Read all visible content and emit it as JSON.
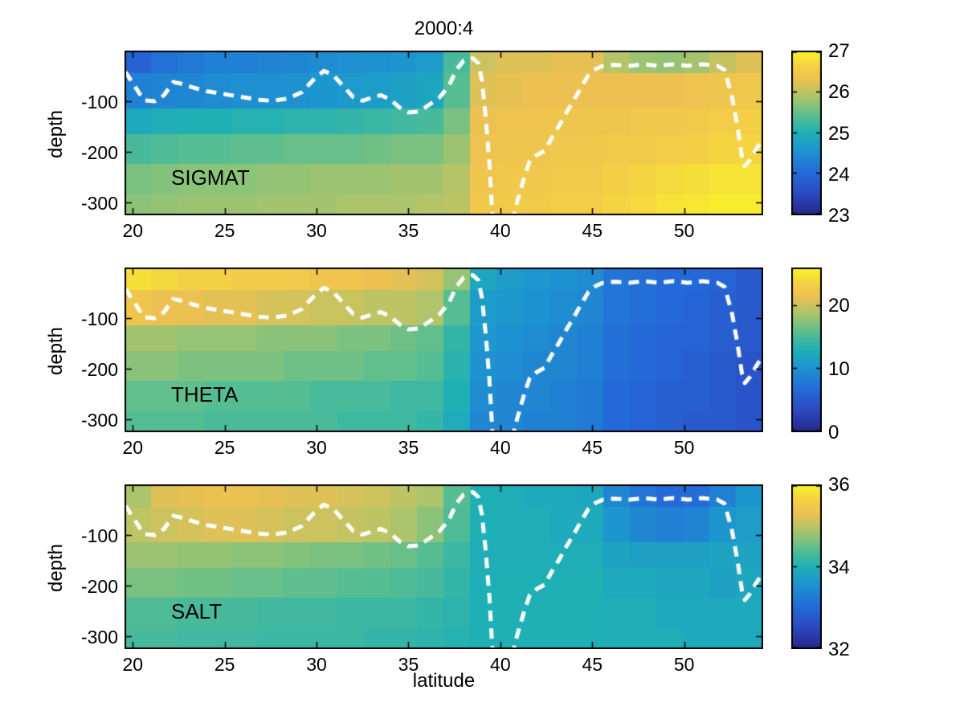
{
  "title": "2000:4",
  "chart_data": {
    "type": "heatmap",
    "title": "2000:4",
    "xlabel": "latitude",
    "ylabel": "depth",
    "lat_range": [
      19.55,
      54.3
    ],
    "x_ticks": [
      20,
      25,
      30,
      35,
      40,
      45,
      50
    ],
    "depth_range": [
      0,
      -325
    ],
    "y_ticks": [
      -100,
      -200,
      -300
    ],
    "row_boundaries": [
      0,
      -45,
      -115,
      -165,
      -225,
      -285,
      -325
    ],
    "grid": "off",
    "legend": "colorbars-right",
    "colormap": [
      [
        0.0,
        "#232888"
      ],
      [
        0.13,
        "#2c49c0"
      ],
      [
        0.25,
        "#2469d8"
      ],
      [
        0.4,
        "#1d96cf"
      ],
      [
        0.5,
        "#1fb0b5"
      ],
      [
        0.6,
        "#56bd92"
      ],
      [
        0.68,
        "#8fc377"
      ],
      [
        0.75,
        "#bcc464"
      ],
      [
        0.82,
        "#ecc052"
      ],
      [
        0.9,
        "#f4cf45"
      ],
      [
        1.0,
        "#f9f626"
      ]
    ],
    "mld_line": {
      "color": "#ffffff",
      "style": "dashed",
      "width": 5,
      "points": [
        [
          19.6,
          -42
        ],
        [
          20.1,
          -70
        ],
        [
          20.6,
          -98
        ],
        [
          21.2,
          -100
        ],
        [
          21.7,
          -88
        ],
        [
          22.2,
          -62
        ],
        [
          22.6,
          -65
        ],
        [
          23.2,
          -72
        ],
        [
          24.0,
          -80
        ],
        [
          25.0,
          -86
        ],
        [
          26.0,
          -92
        ],
        [
          26.8,
          -97
        ],
        [
          27.6,
          -99
        ],
        [
          28.4,
          -95
        ],
        [
          29.2,
          -82
        ],
        [
          29.9,
          -55
        ],
        [
          30.4,
          -40
        ],
        [
          30.9,
          -48
        ],
        [
          31.5,
          -72
        ],
        [
          32.0,
          -92
        ],
        [
          32.5,
          -99
        ],
        [
          33.0,
          -93
        ],
        [
          33.5,
          -88
        ],
        [
          34.0,
          -96
        ],
        [
          34.5,
          -112
        ],
        [
          35.0,
          -122
        ],
        [
          35.6,
          -120
        ],
        [
          36.2,
          -105
        ],
        [
          36.7,
          -92
        ],
        [
          37.2,
          -70
        ],
        [
          37.6,
          -38
        ],
        [
          38.0,
          -20
        ],
        [
          38.5,
          -15
        ],
        [
          38.8,
          -25
        ],
        [
          39.0,
          -60
        ],
        [
          39.2,
          -130
        ],
        [
          39.4,
          -220
        ],
        [
          39.6,
          -345
        ],
        [
          40.6,
          -345
        ],
        [
          40.9,
          -300
        ],
        [
          41.3,
          -250
        ],
        [
          41.6,
          -218
        ],
        [
          42.0,
          -206
        ],
        [
          42.4,
          -198
        ],
        [
          42.8,
          -172
        ],
        [
          43.2,
          -148
        ],
        [
          43.6,
          -122
        ],
        [
          44.0,
          -98
        ],
        [
          44.4,
          -72
        ],
        [
          44.8,
          -48
        ],
        [
          45.2,
          -36
        ],
        [
          45.6,
          -30
        ],
        [
          46.2,
          -28
        ],
        [
          47.0,
          -30
        ],
        [
          47.8,
          -27
        ],
        [
          48.6,
          -30
        ],
        [
          49.4,
          -27
        ],
        [
          50.2,
          -30
        ],
        [
          51.0,
          -27
        ],
        [
          51.8,
          -30
        ],
        [
          52.2,
          -38
        ],
        [
          52.6,
          -90
        ],
        [
          52.9,
          -150
        ],
        [
          53.15,
          -210
        ],
        [
          53.3,
          -228
        ],
        [
          53.6,
          -215
        ],
        [
          54.0,
          -190
        ],
        [
          54.3,
          -175
        ]
      ]
    },
    "panels": [
      {
        "name": "SIGMAT",
        "colorbar": {
          "range": [
            23,
            27
          ],
          "ticks": [
            23,
            24,
            25,
            26,
            27
          ]
        },
        "values": [
          [
            23.9,
            24.1,
            24.2,
            24.3,
            24.3,
            24.35,
            24.4,
            24.45,
            24.5,
            24.55,
            24.6,
            24.7,
            25.3,
            26.1,
            26.2,
            26.2,
            26.25,
            26.25,
            25.95,
            25.8,
            25.75,
            25.85,
            26.05,
            26.2
          ],
          [
            24.3,
            24.35,
            24.4,
            24.45,
            24.5,
            24.5,
            24.55,
            24.6,
            24.65,
            24.7,
            24.75,
            24.85,
            25.4,
            26.2,
            26.25,
            26.3,
            26.3,
            26.3,
            26.3,
            26.3,
            26.3,
            26.35,
            26.4,
            26.45
          ],
          [
            24.9,
            24.95,
            25.0,
            25.0,
            25.05,
            25.05,
            25.1,
            25.1,
            25.15,
            25.2,
            25.25,
            25.3,
            25.6,
            26.3,
            26.35,
            26.35,
            26.4,
            26.4,
            26.4,
            26.45,
            26.45,
            26.5,
            26.55,
            26.6
          ],
          [
            25.3,
            25.35,
            25.4,
            25.4,
            25.45,
            25.45,
            25.5,
            25.5,
            25.5,
            25.55,
            25.6,
            25.6,
            25.8,
            26.35,
            26.4,
            26.4,
            26.45,
            26.45,
            26.5,
            26.5,
            26.55,
            26.6,
            26.65,
            26.65
          ],
          [
            25.6,
            25.65,
            25.7,
            25.7,
            25.7,
            25.75,
            25.75,
            25.8,
            25.8,
            25.8,
            25.85,
            25.85,
            25.95,
            26.4,
            26.45,
            26.45,
            26.5,
            26.5,
            26.6,
            26.65,
            26.7,
            26.75,
            26.8,
            26.8
          ],
          [
            25.7,
            25.75,
            25.8,
            25.8,
            25.8,
            25.85,
            25.85,
            25.85,
            25.9,
            25.9,
            25.9,
            25.95,
            26.0,
            26.45,
            26.5,
            26.5,
            26.55,
            26.55,
            26.65,
            26.7,
            26.8,
            26.85,
            26.9,
            26.9
          ]
        ]
      },
      {
        "name": "THETA",
        "colorbar": {
          "range": [
            0,
            26
          ],
          "ticks": [
            0,
            10,
            20
          ]
        },
        "values": [
          [
            24.5,
            24.0,
            23.5,
            23.5,
            23.0,
            23.0,
            22.5,
            22.0,
            22.0,
            21.5,
            21.0,
            20.5,
            18.0,
            12.0,
            11.0,
            10.5,
            10.0,
            9.5,
            7.5,
            7.0,
            6.5,
            6.5,
            6.0,
            5.0
          ],
          [
            22.0,
            21.5,
            21.5,
            21.0,
            21.0,
            20.5,
            20.5,
            20.0,
            20.0,
            19.5,
            19.5,
            19.0,
            15.5,
            11.0,
            10.5,
            10.0,
            9.5,
            9.0,
            7.5,
            7.0,
            6.5,
            6.0,
            5.5,
            5.0
          ],
          [
            18.5,
            18.5,
            18.0,
            18.0,
            18.0,
            17.5,
            17.5,
            17.5,
            17.0,
            17.0,
            16.5,
            16.0,
            14.0,
            10.5,
            10.0,
            9.5,
            9.0,
            8.5,
            7.0,
            6.5,
            6.0,
            6.0,
            5.5,
            5.0
          ],
          [
            17.5,
            17.5,
            17.0,
            17.0,
            17.0,
            17.0,
            16.5,
            16.5,
            16.5,
            16.0,
            16.0,
            15.5,
            13.5,
            10.0,
            9.5,
            9.0,
            9.0,
            8.5,
            7.0,
            6.5,
            6.0,
            5.5,
            5.0,
            4.5
          ],
          [
            16.0,
            16.0,
            16.0,
            15.5,
            15.5,
            15.5,
            15.5,
            15.0,
            15.0,
            15.0,
            14.5,
            14.5,
            13.0,
            9.5,
            9.0,
            9.0,
            8.5,
            8.0,
            6.5,
            6.0,
            5.5,
            5.5,
            5.0,
            4.5
          ],
          [
            15.5,
            15.5,
            15.5,
            15.0,
            15.0,
            15.0,
            15.0,
            15.0,
            14.5,
            14.5,
            14.5,
            14.0,
            12.5,
            9.0,
            9.0,
            8.5,
            8.5,
            8.0,
            6.5,
            6.0,
            5.5,
            5.0,
            5.0,
            4.5
          ]
        ]
      },
      {
        "name": "SALT",
        "colorbar": {
          "range": [
            32,
            36
          ],
          "ticks": [
            32,
            34,
            36
          ]
        },
        "values": [
          [
            34.9,
            35.2,
            35.25,
            35.3,
            35.3,
            35.25,
            35.2,
            35.2,
            35.15,
            35.1,
            35.0,
            34.9,
            34.4,
            34.0,
            33.95,
            33.9,
            33.9,
            33.85,
            33.4,
            33.15,
            33.0,
            33.05,
            33.3,
            33.6
          ],
          [
            35.0,
            35.1,
            35.15,
            35.2,
            35.2,
            35.15,
            35.1,
            35.1,
            35.05,
            35.0,
            34.9,
            34.7,
            34.35,
            34.0,
            33.95,
            33.95,
            33.9,
            33.9,
            33.6,
            33.4,
            33.3,
            33.35,
            33.6,
            33.7
          ],
          [
            34.8,
            34.8,
            34.75,
            34.75,
            34.7,
            34.7,
            34.65,
            34.6,
            34.6,
            34.55,
            34.5,
            34.4,
            34.2,
            33.95,
            33.95,
            33.95,
            33.95,
            33.95,
            33.8,
            33.75,
            33.75,
            33.75,
            33.8,
            33.8
          ],
          [
            34.6,
            34.6,
            34.55,
            34.55,
            34.5,
            34.5,
            34.45,
            34.45,
            34.4,
            34.4,
            34.35,
            34.3,
            34.15,
            33.95,
            34.0,
            34.0,
            34.0,
            34.0,
            33.9,
            33.9,
            33.85,
            33.85,
            33.75,
            33.85
          ],
          [
            34.35,
            34.35,
            34.3,
            34.3,
            34.3,
            34.25,
            34.25,
            34.25,
            34.2,
            34.2,
            34.2,
            34.15,
            34.1,
            34.0,
            34.0,
            34.0,
            34.0,
            34.0,
            33.95,
            33.95,
            33.9,
            33.9,
            33.9,
            33.9
          ],
          [
            34.3,
            34.3,
            34.25,
            34.25,
            34.25,
            34.2,
            34.2,
            34.2,
            34.2,
            34.15,
            34.15,
            34.1,
            34.05,
            34.0,
            34.0,
            34.0,
            34.0,
            34.0,
            33.95,
            33.95,
            33.95,
            33.9,
            33.9,
            33.9
          ]
        ]
      }
    ]
  }
}
